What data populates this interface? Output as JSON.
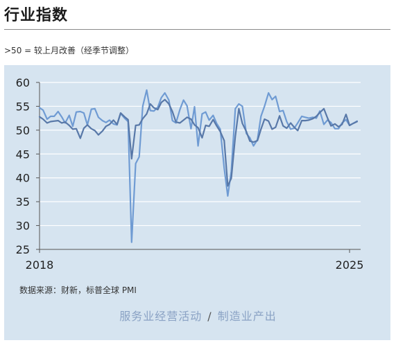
{
  "title": "行业指数",
  "subtitle": ">50 = 较上月改善（经季节调整）",
  "source": "数据来源：财新，标普全球 PMI",
  "legend": {
    "services": "服务业经营活动",
    "separator": "/",
    "manufacturing": "制造业产出"
  },
  "colors": {
    "panel_bg": "#d6e4f0",
    "services": "#6f9bd3",
    "manufacturing": "#5878a8",
    "grid": "#ffffff",
    "axis": "#555555"
  },
  "chart_data": {
    "type": "line",
    "xlabel": "",
    "ylabel": "",
    "x_tick_labels": [
      "2018",
      "2025"
    ],
    "xlim": [
      2018.0,
      2025.25
    ],
    "ylim": [
      25,
      60
    ],
    "y_ticks": [
      25,
      30,
      35,
      40,
      45,
      50,
      55,
      60
    ],
    "grid": true,
    "series": [
      {
        "name": "服务业经营活动",
        "x": [
          2018.0,
          2018.08,
          2018.17,
          2018.25,
          2018.33,
          2018.42,
          2018.5,
          2018.58,
          2018.67,
          2018.75,
          2018.83,
          2018.92,
          2019.0,
          2019.08,
          2019.17,
          2019.25,
          2019.33,
          2019.42,
          2019.5,
          2019.58,
          2019.67,
          2019.75,
          2019.83,
          2019.92,
          2020.0,
          2020.08,
          2020.17,
          2020.25,
          2020.33,
          2020.42,
          2020.5,
          2020.58,
          2020.67,
          2020.75,
          2020.83,
          2020.92,
          2021.0,
          2021.08,
          2021.17,
          2021.25,
          2021.33,
          2021.42,
          2021.5,
          2021.58,
          2021.67,
          2021.75,
          2021.83,
          2021.92,
          2022.0,
          2022.08,
          2022.17,
          2022.25,
          2022.33,
          2022.42,
          2022.5,
          2022.58,
          2022.67,
          2022.75,
          2022.83,
          2022.92,
          2023.0,
          2023.08,
          2023.17,
          2023.25,
          2023.33,
          2023.42,
          2023.5,
          2023.58,
          2023.67,
          2023.75,
          2023.83,
          2023.92,
          2024.0,
          2024.08,
          2024.17,
          2024.25,
          2024.33,
          2024.42,
          2024.5,
          2024.58,
          2024.67,
          2024.75,
          2024.83,
          2024.92,
          2025.0,
          2025.08,
          2025.17
        ],
        "values": [
          54.7,
          54.2,
          52.3,
          52.9,
          52.9,
          53.9,
          52.8,
          51.5,
          53.1,
          50.8,
          53.8,
          53.9,
          53.6,
          51.1,
          54.4,
          54.5,
          52.7,
          52.0,
          51.6,
          52.1,
          51.3,
          51.1,
          53.5,
          52.5,
          51.8,
          26.5,
          43.0,
          44.4,
          55.0,
          58.4,
          54.1,
          54.0,
          54.8,
          56.8,
          57.8,
          56.3,
          52.0,
          51.5,
          54.3,
          56.3,
          55.1,
          50.3,
          54.9,
          46.7,
          53.4,
          53.8,
          52.1,
          53.1,
          51.4,
          50.2,
          42.0,
          36.2,
          41.4,
          54.5,
          55.5,
          55.0,
          49.3,
          48.4,
          46.7,
          48.0,
          52.9,
          55.0,
          57.8,
          56.4,
          57.1,
          53.9,
          54.1,
          51.8,
          50.2,
          50.4,
          51.5,
          52.9,
          52.7,
          52.5,
          52.7,
          52.5,
          54.0,
          51.2,
          52.1,
          51.6,
          50.3,
          50.3,
          51.5,
          52.2,
          51.0,
          51.4,
          51.9
        ]
      },
      {
        "name": "制造业产出",
        "x": [
          2018.0,
          2018.08,
          2018.17,
          2018.25,
          2018.33,
          2018.42,
          2018.5,
          2018.58,
          2018.67,
          2018.75,
          2018.83,
          2018.92,
          2019.0,
          2019.08,
          2019.17,
          2019.25,
          2019.33,
          2019.42,
          2019.5,
          2019.58,
          2019.67,
          2019.75,
          2019.83,
          2019.92,
          2020.0,
          2020.08,
          2020.17,
          2020.25,
          2020.33,
          2020.42,
          2020.5,
          2020.58,
          2020.67,
          2020.75,
          2020.83,
          2020.92,
          2021.0,
          2021.08,
          2021.17,
          2021.25,
          2021.33,
          2021.42,
          2021.5,
          2021.58,
          2021.67,
          2021.75,
          2021.83,
          2021.92,
          2022.0,
          2022.08,
          2022.17,
          2022.25,
          2022.33,
          2022.42,
          2022.5,
          2022.58,
          2022.67,
          2022.75,
          2022.83,
          2022.92,
          2023.0,
          2023.08,
          2023.17,
          2023.25,
          2023.33,
          2023.42,
          2023.5,
          2023.58,
          2023.67,
          2023.75,
          2023.83,
          2023.92,
          2024.0,
          2024.08,
          2024.17,
          2024.25,
          2024.33,
          2024.42,
          2024.5,
          2024.58,
          2024.67,
          2024.75,
          2024.83,
          2024.92,
          2025.0,
          2025.08,
          2025.17
        ],
        "values": [
          52.8,
          52.3,
          51.5,
          51.8,
          51.9,
          52.0,
          51.5,
          51.7,
          51.0,
          50.2,
          50.3,
          48.3,
          50.4,
          51.1,
          50.3,
          49.9,
          49.0,
          49.8,
          50.8,
          51.2,
          52.1,
          51.2,
          53.6,
          52.8,
          52.2,
          44.0,
          51.0,
          51.1,
          52.4,
          53.4,
          55.5,
          54.7,
          54.3,
          55.8,
          56.4,
          55.5,
          53.9,
          51.7,
          51.5,
          52.1,
          52.7,
          52.3,
          51.1,
          50.5,
          48.4,
          51.0,
          50.8,
          52.2,
          50.9,
          49.7,
          47.8,
          38.3,
          39.9,
          48.7,
          54.5,
          51.4,
          49.7,
          47.7,
          47.5,
          47.8,
          50.2,
          52.3,
          51.9,
          50.2,
          50.6,
          53.0,
          50.9,
          50.4,
          51.5,
          50.6,
          49.9,
          52.0,
          52.0,
          52.1,
          52.4,
          52.9,
          53.7,
          54.5,
          52.6,
          50.9,
          51.3,
          50.7,
          51.2,
          53.3,
          51.0,
          51.4,
          51.8
        ]
      }
    ]
  }
}
